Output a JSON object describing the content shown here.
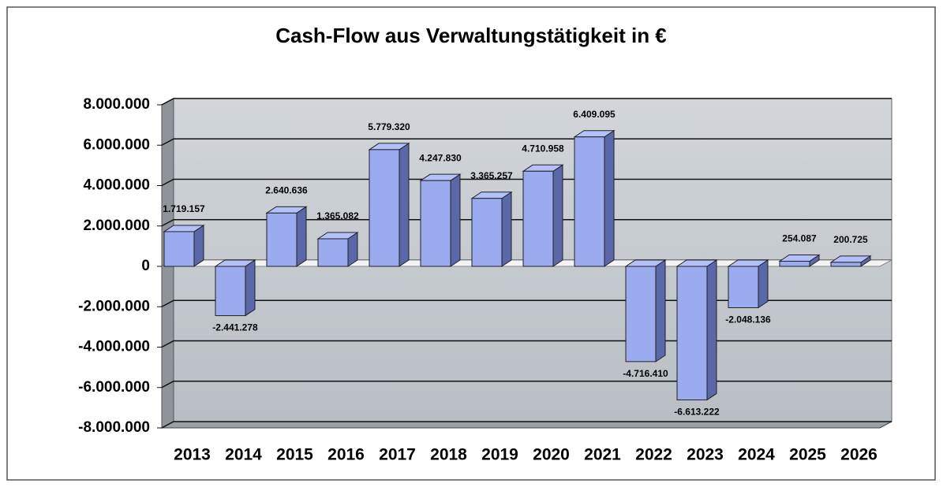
{
  "chart_data": {
    "type": "bar",
    "title": "Cash-Flow aus Verwaltungstätigkeit in €",
    "categories": [
      "2013",
      "2014",
      "2015",
      "2016",
      "2017",
      "2018",
      "2019",
      "2020",
      "2021",
      "2022",
      "2023",
      "2024",
      "2025",
      "2026"
    ],
    "values": [
      1719157,
      -2441278,
      2640636,
      1365082,
      5779320,
      4247830,
      3365257,
      4710958,
      6409095,
      -4716410,
      -6613222,
      -2048136,
      254087,
      200725
    ],
    "value_labels": [
      "1.719.157",
      "-2.441.278",
      "2.640.636",
      "1.365.082",
      "5.779.320",
      "4.247.830",
      "3.365.257",
      "4.710.958",
      "6.409.095",
      "-4.716.410",
      "-6.613.222",
      "-2.048.136",
      "254.087",
      "200.725"
    ],
    "color": "#9aabef",
    "ylim": [
      -8000000,
      8000000
    ],
    "yticks": [
      {
        "value": -8000000,
        "label": "-8.000.000"
      },
      {
        "value": -6000000,
        "label": "-6.000.000"
      },
      {
        "value": -4000000,
        "label": "-4.000.000"
      },
      {
        "value": -2000000,
        "label": "-2.000.000"
      },
      0,
      {
        "value": 2000000,
        "label": "2.000.000"
      },
      {
        "value": 4000000,
        "label": "4.000.000"
      },
      {
        "value": 6000000,
        "label": "6.000.000"
      },
      {
        "value": 8000000,
        "label": "8.000.000"
      }
    ],
    "grid": true
  }
}
